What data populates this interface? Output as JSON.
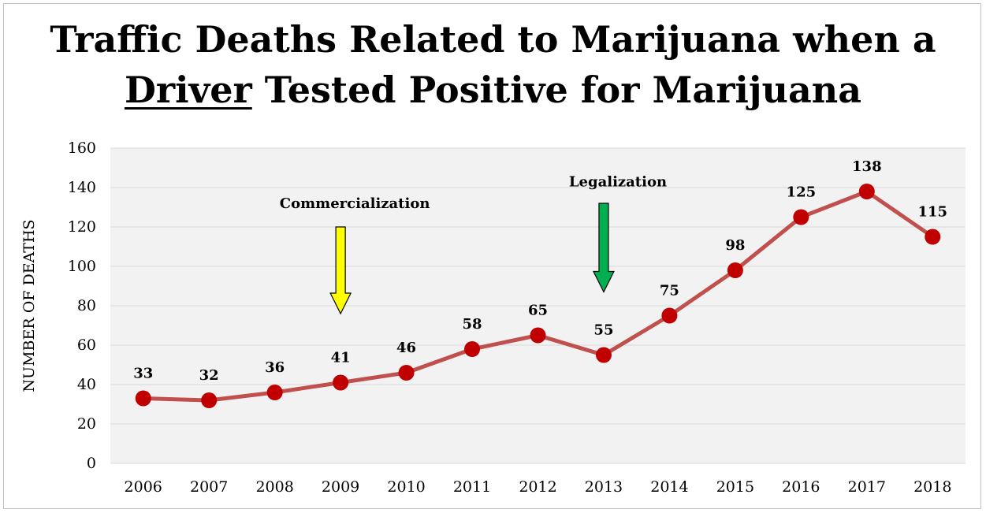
{
  "chart_data": {
    "type": "line",
    "title_part1": "Traffic Deaths Related to Marijuana when a",
    "title_underlined": "Driver",
    "title_part2": "Tested Positive for Marijuana",
    "xlabel": "",
    "ylabel": "NUMBER OF DEATHS",
    "ylim": [
      0,
      160
    ],
    "yticks": [
      0,
      20,
      40,
      60,
      80,
      100,
      120,
      140,
      160
    ],
    "categories": [
      "2006",
      "2007",
      "2008",
      "2009",
      "2010",
      "2011",
      "2012",
      "2013",
      "2014",
      "2015",
      "2016",
      "2017",
      "2018"
    ],
    "values": [
      33,
      32,
      36,
      41,
      46,
      58,
      65,
      55,
      75,
      98,
      125,
      138,
      115
    ],
    "grid": true,
    "line_color": "#c0504d",
    "marker_color": "#c00000",
    "plot_background": "#f2f2f2",
    "annotations": [
      {
        "text": "Commercialization",
        "category": "2009",
        "arrow_color": "#ffff00",
        "arrow_top_value": 120,
        "arrow_bottom_value": 76,
        "label_value": 132
      },
      {
        "text": "Legalization",
        "category": "2013",
        "arrow_color": "#00b050",
        "arrow_top_value": 132,
        "arrow_bottom_value": 87,
        "label_value": 143
      }
    ]
  }
}
